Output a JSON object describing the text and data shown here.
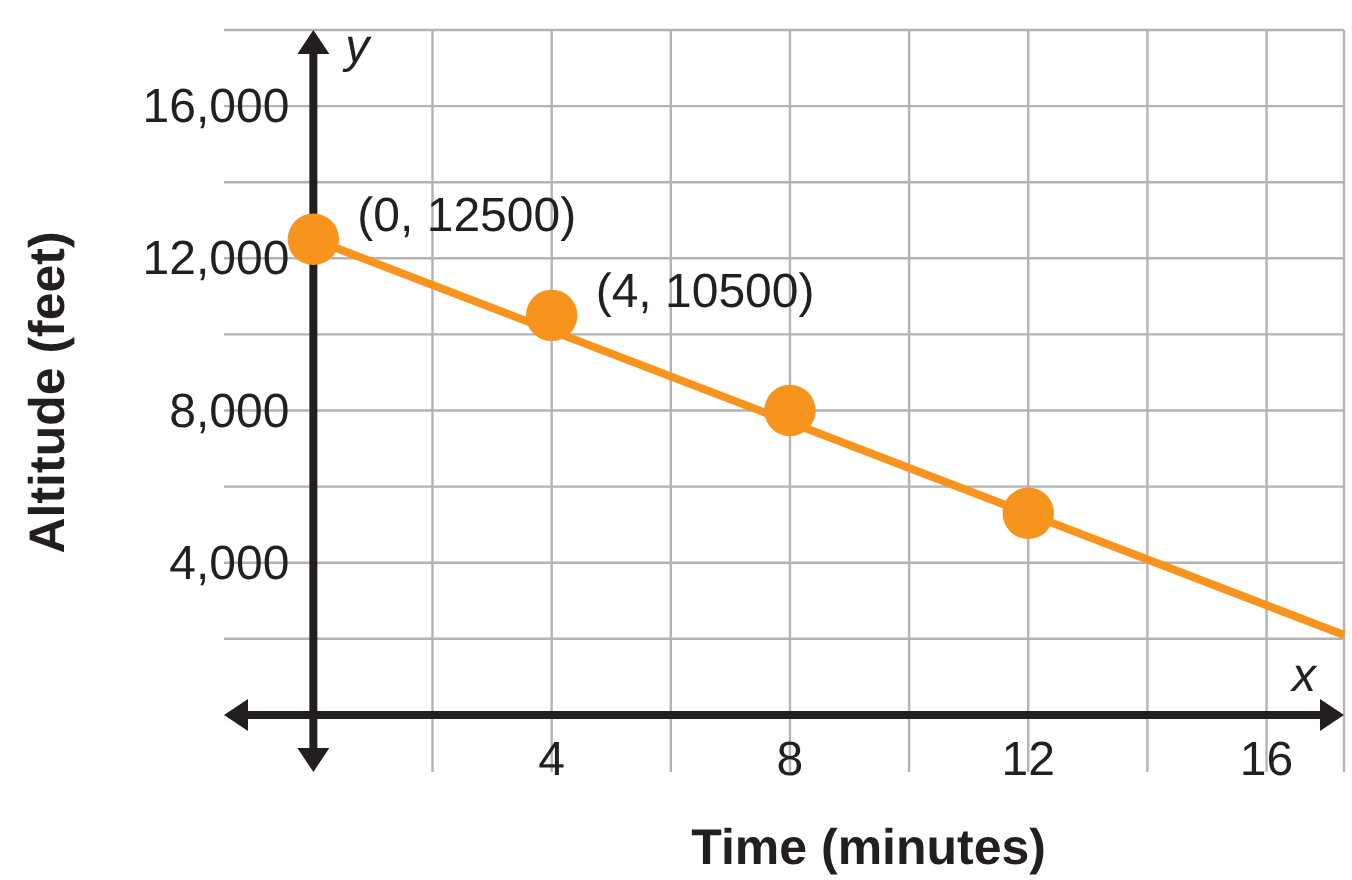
{
  "chart_data": {
    "type": "line",
    "xlabel": "Time (minutes)",
    "ylabel": "Altitude (feet)",
    "xlim": [
      -1.5,
      17.3
    ],
    "ylim": [
      -1500,
      18000
    ],
    "xticks": [
      {
        "value": 2,
        "label": null
      },
      4,
      {
        "value": 6,
        "label": null
      },
      8,
      {
        "value": 10,
        "label": null
      },
      12,
      {
        "value": 14,
        "label": null
      },
      16
    ],
    "yticks": [
      {
        "value": 2000,
        "label": null
      },
      {
        "value": 4000,
        "label": "4,000"
      },
      {
        "value": 6000,
        "label": null
      },
      {
        "value": 8000,
        "label": "8,000"
      },
      {
        "value": 10000,
        "label": null
      },
      {
        "value": 12000,
        "label": "12,000"
      },
      {
        "value": 14000,
        "label": null
      },
      {
        "value": 16000,
        "label": "16,000"
      }
    ],
    "grid": true,
    "series": [
      {
        "type": "line",
        "color": "#f7941d",
        "x": [
          0,
          17.3
        ],
        "values": [
          12500,
          2100
        ],
        "marker": "none"
      },
      {
        "type": "scatter",
        "color": "#f7941d",
        "x": [
          0,
          4,
          8,
          12
        ],
        "values": [
          12500,
          10500,
          8000,
          5300
        ],
        "marker": "circle"
      }
    ],
    "annotations": [
      {
        "text": "(0, 12500)",
        "x": 0,
        "y": 12500
      },
      {
        "text": "(4, 10500)",
        "x": 4,
        "y": 10500
      },
      "x",
      "y"
    ]
  }
}
